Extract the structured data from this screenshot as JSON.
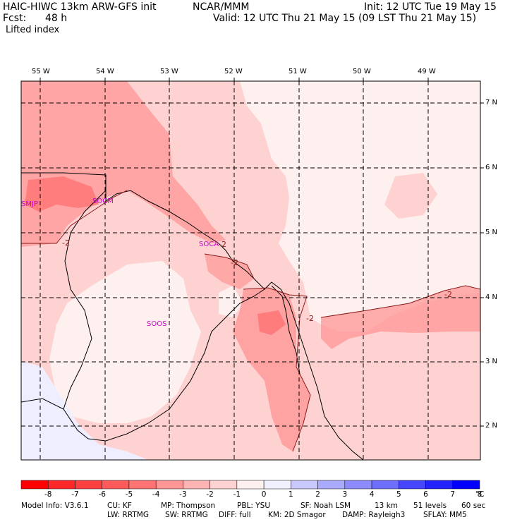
{
  "header": {
    "model": "HAIC-HIWC 13km ARW-GFS init",
    "org": "NCAR/MMM",
    "init": "Init: 12 UTC Tue 19 May 15",
    "fcst_label": "Fcst:",
    "fcst_value": "48 h",
    "valid": "Valid: 12 UTC Thu 21 May 15 (09 LST Thu 21 May 15)",
    "field": "Lifted index"
  },
  "map": {
    "lon_labels": [
      "55 W",
      "54 W",
      "53 W",
      "52 W",
      "51 W",
      "50 W",
      "49 W"
    ],
    "lat_labels": [
      "7 N",
      "6 N",
      "5 N",
      "4 N",
      "3 N",
      "2 N"
    ],
    "stations": [
      "SMJP",
      "SOCM",
      "SOCA",
      "SOOS"
    ],
    "contour_labels": [
      "-2",
      "-2",
      "-2",
      "-2",
      "-2"
    ]
  },
  "colorbar": {
    "ticks": [
      "-8",
      "-7",
      "-6",
      "-5",
      "-4",
      "-3",
      "-2",
      "-1",
      "0",
      "1",
      "2",
      "3",
      "4",
      "5",
      "6",
      "7",
      "8"
    ],
    "unit": "°C",
    "colors": [
      "#ff0000",
      "#ff2828",
      "#ff4040",
      "#ff5a5a",
      "#ff7373",
      "#ff9696",
      "#ffb4b4",
      "#ffd2d2",
      "#fff0f0",
      "#f0f0ff",
      "#c8c8ff",
      "#aaaaff",
      "#8c8cff",
      "#6e6eff",
      "#4646ff",
      "#2222ff",
      "#0000ff"
    ]
  },
  "footer": {
    "line1": [
      "Model Info: V3.6.1",
      "CU: KF",
      "MP: Thompson",
      "PBL: YSU",
      "SF: Noah LSM",
      "13 km",
      "51 levels",
      "60 sec"
    ],
    "line2": [
      "LW: RRTMG",
      "SW: RRTMG",
      "DIFF: full",
      "KM: 2D Smagor",
      "DAMP: Rayleigh3",
      "SFLAY: MM5"
    ]
  }
}
